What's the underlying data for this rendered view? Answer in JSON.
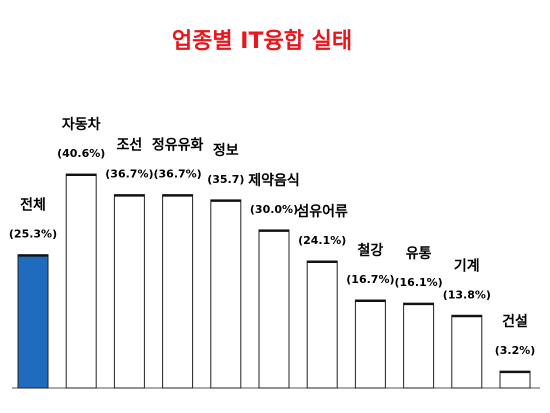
{
  "chart_data": {
    "type": "bar",
    "title": "업종별 IT융합 실태",
    "categories": [
      "전체",
      "자동차",
      "조선",
      "정유유화",
      "정보",
      "제약음식",
      "섬유어류",
      "철강",
      "유통",
      "기계",
      "건설"
    ],
    "values": [
      25.3,
      40.6,
      36.7,
      36.7,
      35.7,
      30.0,
      24.1,
      16.7,
      16.1,
      13.8,
      3.2
    ],
    "value_labels": [
      "(25.3%)",
      "(40.6%)",
      "(36.7%)",
      "(36.7%)",
      "(35.7)",
      "(30.0%)",
      "(24.1%)",
      "(16.7%)",
      "(16.1%)",
      "(13.8%)",
      "(3.2%)"
    ],
    "colors": [
      "#1f6cbf",
      "#ffffff",
      "#ffffff",
      "#ffffff",
      "#ffffff",
      "#ffffff",
      "#ffffff",
      "#ffffff",
      "#ffffff",
      "#ffffff",
      "#ffffff"
    ],
    "title_color": "#e8161c"
  }
}
